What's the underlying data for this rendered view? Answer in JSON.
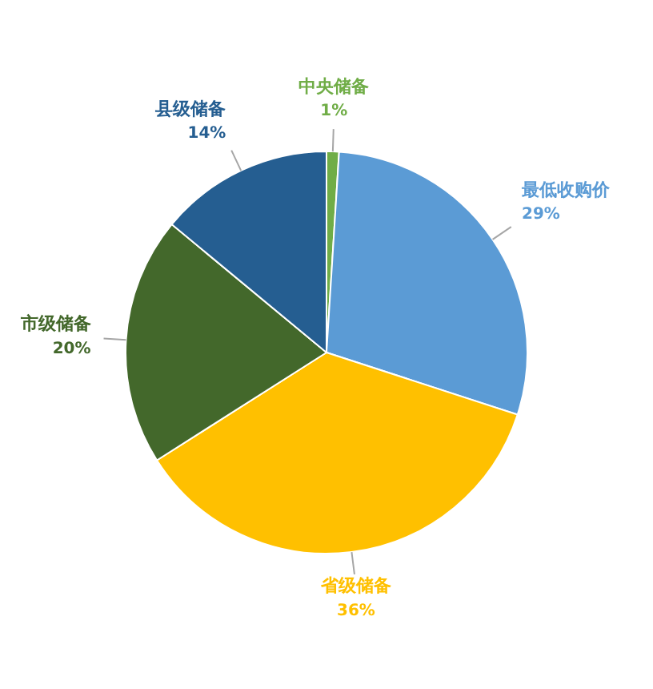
{
  "chart_data": {
    "type": "pie",
    "categories": [
      "中央储备",
      "最低收购价",
      "省级储备",
      "市级储备",
      "县级储备"
    ],
    "values": [
      1,
      29,
      36,
      20,
      14
    ],
    "colors": [
      "#70ad47",
      "#5b9bd5",
      "#ffc000",
      "#43682b",
      "#255e91"
    ],
    "value_labels": [
      "1%",
      "29%",
      "36%",
      "20%",
      "14%"
    ],
    "legend": false
  }
}
